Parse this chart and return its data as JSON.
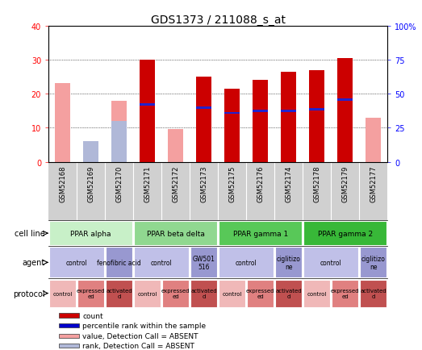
{
  "title": "GDS1373 / 211088_s_at",
  "samples": [
    "GSM52168",
    "GSM52169",
    "GSM52170",
    "GSM52171",
    "GSM52172",
    "GSM52173",
    "GSM52175",
    "GSM52176",
    "GSM52174",
    "GSM52178",
    "GSM52179",
    "GSM52177"
  ],
  "bar_heights_red": [
    0,
    0,
    0,
    30,
    0,
    25,
    21.5,
    24,
    26.5,
    27,
    30.5,
    0
  ],
  "bar_heights_pink": [
    23,
    2,
    18,
    0,
    9.5,
    0,
    0,
    0,
    0,
    0,
    0,
    13
  ],
  "bar_heights_lightblue": [
    0,
    6,
    12,
    0,
    0,
    0,
    0,
    0,
    0,
    0,
    0,
    0
  ],
  "blue_marker_pos": [
    0,
    0,
    0,
    16.5,
    0,
    15.5,
    14.0,
    14.5,
    14.5,
    15.0,
    18.0,
    0
  ],
  "pink_bar_show": [
    true,
    true,
    true,
    false,
    true,
    false,
    false,
    false,
    false,
    false,
    false,
    true
  ],
  "lightblue_bar_show": [
    false,
    true,
    true,
    false,
    false,
    false,
    false,
    false,
    false,
    false,
    false,
    false
  ],
  "red_bar_show": [
    false,
    false,
    false,
    true,
    false,
    true,
    true,
    true,
    true,
    true,
    true,
    false
  ],
  "ylim_left": [
    0,
    40
  ],
  "ylim_right": [
    0,
    100
  ],
  "yticks_left": [
    0,
    10,
    20,
    30,
    40
  ],
  "yticks_right": [
    0,
    25,
    50,
    75,
    100
  ],
  "ytick_labels_right": [
    "0",
    "25",
    "50",
    "75",
    "100%"
  ],
  "cell_line_groups": [
    {
      "label": "PPAR alpha",
      "start": 0,
      "end": 3,
      "color": "#c8f0c8"
    },
    {
      "label": "PPAR beta delta",
      "start": 3,
      "end": 6,
      "color": "#90d890"
    },
    {
      "label": "PPAR gamma 1",
      "start": 6,
      "end": 9,
      "color": "#58c858"
    },
    {
      "label": "PPAR gamma 2",
      "start": 9,
      "end": 12,
      "color": "#38b838"
    }
  ],
  "agent_groups": [
    {
      "label": "control",
      "start": 0,
      "end": 2,
      "color": "#c0c0e8"
    },
    {
      "label": "fenofibric acid",
      "start": 2,
      "end": 3,
      "color": "#9898d0"
    },
    {
      "label": "control",
      "start": 3,
      "end": 5,
      "color": "#c0c0e8"
    },
    {
      "label": "GW501\n516",
      "start": 5,
      "end": 6,
      "color": "#9898d0"
    },
    {
      "label": "control",
      "start": 6,
      "end": 8,
      "color": "#c0c0e8"
    },
    {
      "label": "ciglitizo\nne",
      "start": 8,
      "end": 9,
      "color": "#9898d0"
    },
    {
      "label": "control",
      "start": 9,
      "end": 11,
      "color": "#c0c0e8"
    },
    {
      "label": "ciglitizo\nne",
      "start": 11,
      "end": 12,
      "color": "#9898d0"
    }
  ],
  "protocol_groups": [
    {
      "label": "control",
      "start": 0,
      "end": 1,
      "color": "#f0b8b8"
    },
    {
      "label": "expressed\ned",
      "start": 1,
      "end": 2,
      "color": "#e08080"
    },
    {
      "label": "activated\nd",
      "start": 2,
      "end": 3,
      "color": "#c05050"
    },
    {
      "label": "control",
      "start": 3,
      "end": 4,
      "color": "#f0b8b8"
    },
    {
      "label": "expressed\ned",
      "start": 4,
      "end": 5,
      "color": "#e08080"
    },
    {
      "label": "activated\nd",
      "start": 5,
      "end": 6,
      "color": "#c05050"
    },
    {
      "label": "control",
      "start": 6,
      "end": 7,
      "color": "#f0b8b8"
    },
    {
      "label": "expressed\ned",
      "start": 7,
      "end": 8,
      "color": "#e08080"
    },
    {
      "label": "activated\nd",
      "start": 8,
      "end": 9,
      "color": "#c05050"
    },
    {
      "label": "control",
      "start": 9,
      "end": 10,
      "color": "#f0b8b8"
    },
    {
      "label": "expressed\ned",
      "start": 10,
      "end": 11,
      "color": "#e08080"
    },
    {
      "label": "activated\nd",
      "start": 11,
      "end": 12,
      "color": "#c05050"
    }
  ],
  "legend_items": [
    {
      "label": "count",
      "color": "#cc0000"
    },
    {
      "label": "percentile rank within the sample",
      "color": "#0000cc"
    },
    {
      "label": "value, Detection Call = ABSENT",
      "color": "#f4a0a0"
    },
    {
      "label": "rank, Detection Call = ABSENT",
      "color": "#b0b8d8"
    }
  ],
  "bar_width": 0.55,
  "background_color": "#ffffff",
  "sample_bg_color": "#d0d0d0",
  "title_fontsize": 10
}
